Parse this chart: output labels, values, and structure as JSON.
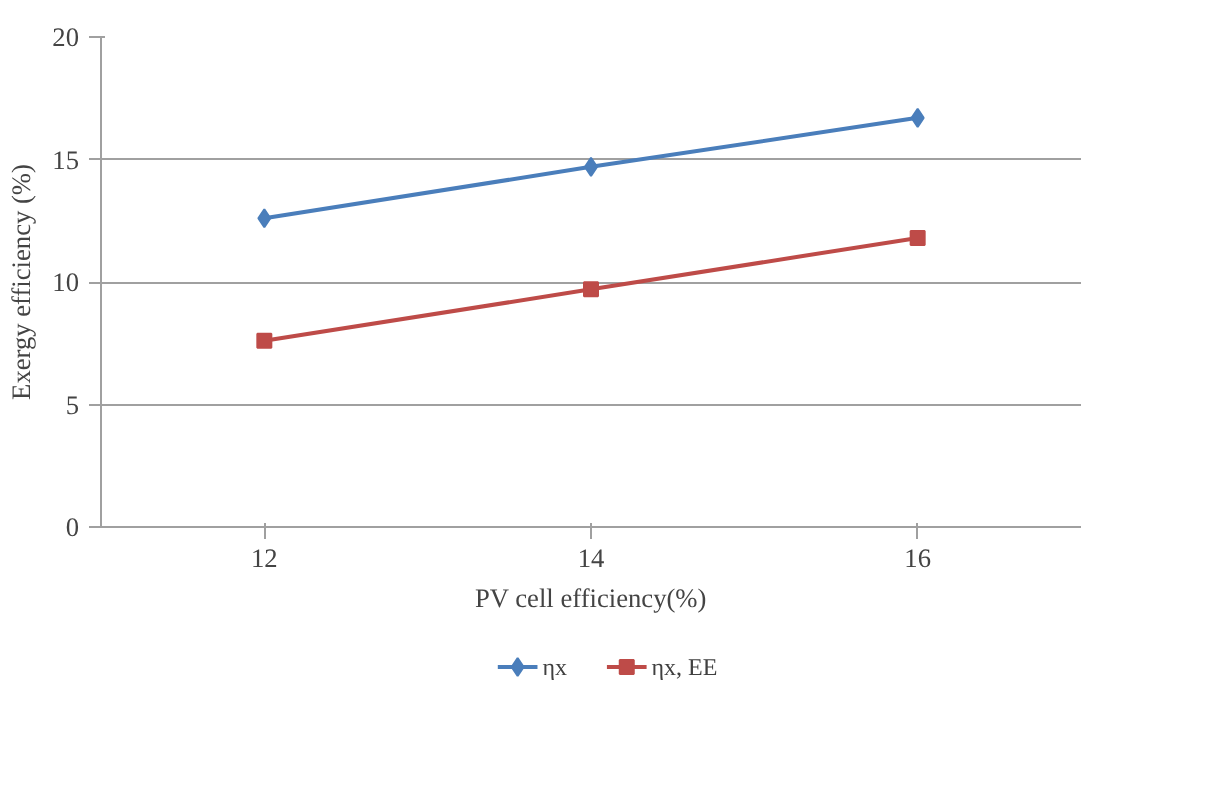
{
  "chart_data": {
    "type": "line",
    "xlabel": "PV cell efficiency(%)",
    "ylabel": "Exergy efficiency (%)",
    "categories": [
      "12",
      "14",
      "16"
    ],
    "series": [
      {
        "name": "ηx",
        "color": "#4a7ebb",
        "marker": "diamond",
        "values": [
          12.6,
          14.7,
          16.7
        ]
      },
      {
        "name": "ηx, EE",
        "color": "#be4b48",
        "marker": "square",
        "values": [
          7.6,
          9.7,
          11.8
        ]
      }
    ],
    "ylim": [
      0,
      20
    ],
    "yticks": [
      0,
      5,
      10,
      15,
      20
    ],
    "grid": "y",
    "legend": "bottom"
  }
}
